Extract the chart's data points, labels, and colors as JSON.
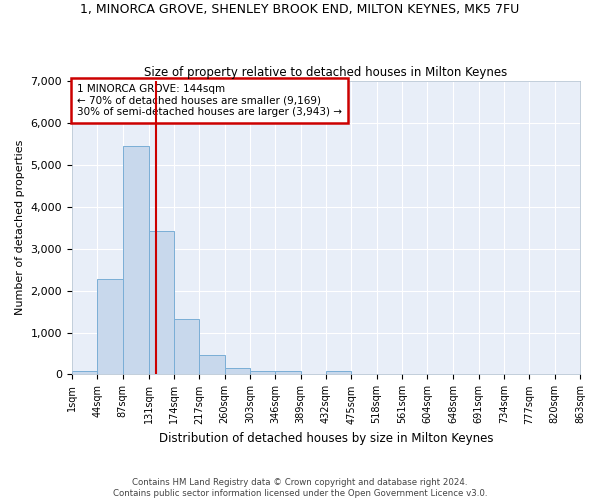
{
  "title": "1, MINORCA GROVE, SHENLEY BROOK END, MILTON KEYNES, MK5 7FU",
  "subtitle": "Size of property relative to detached houses in Milton Keynes",
  "xlabel": "Distribution of detached houses by size in Milton Keynes",
  "ylabel": "Number of detached properties",
  "footer_line1": "Contains HM Land Registry data © Crown copyright and database right 2024.",
  "footer_line2": "Contains public sector information licensed under the Open Government Licence v3.0.",
  "annotation_line1": "1 MINORCA GROVE: 144sqm",
  "annotation_line2": "← 70% of detached houses are smaller (9,169)",
  "annotation_line3": "30% of semi-detached houses are larger (3,943) →",
  "property_size": 144,
  "bar_color": "#c8d8ec",
  "bar_edge_color": "#7aaed6",
  "vline_color": "#cc0000",
  "background_color": "#e8eef8",
  "ylim": [
    0,
    7000
  ],
  "yticks": [
    0,
    1000,
    2000,
    3000,
    4000,
    5000,
    6000,
    7000
  ],
  "bin_edges": [
    1,
    44,
    87,
    131,
    174,
    217,
    260,
    303,
    346,
    389,
    432,
    475,
    518,
    561,
    604,
    648,
    691,
    734,
    777,
    820,
    863
  ],
  "bin_labels": [
    "1sqm",
    "44sqm",
    "87sqm",
    "131sqm",
    "174sqm",
    "217sqm",
    "260sqm",
    "303sqm",
    "346sqm",
    "389sqm",
    "432sqm",
    "475sqm",
    "518sqm",
    "561sqm",
    "604sqm",
    "648sqm",
    "691sqm",
    "734sqm",
    "777sqm",
    "820sqm",
    "863sqm"
  ],
  "bar_heights": [
    80,
    2270,
    5450,
    3420,
    1320,
    460,
    165,
    85,
    75,
    0,
    75,
    0,
    0,
    0,
    0,
    0,
    0,
    0,
    0,
    0
  ]
}
